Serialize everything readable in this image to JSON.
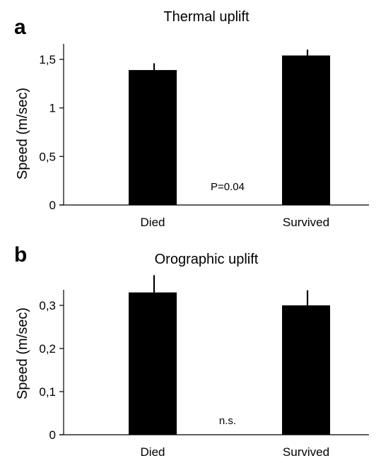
{
  "chart_data": [
    {
      "type": "bar",
      "panel": "a",
      "title": "Thermal uplift",
      "ylabel": "Speed (m/sec)",
      "xlabel": "",
      "categories": [
        "Died",
        "Survived"
      ],
      "values": [
        1.39,
        1.54
      ],
      "error_upper": [
        0.07,
        0.06
      ],
      "ylim": [
        0,
        1.5
      ],
      "yticks": [
        0,
        0.5,
        1,
        1.5
      ],
      "ytick_labels": [
        "0",
        "0,5",
        "1",
        "1,5"
      ],
      "annotation": "P=0.04",
      "bar_color": "#000000",
      "grid": false,
      "legend": "none"
    },
    {
      "type": "bar",
      "panel": "b",
      "title": "Orographic uplift",
      "ylabel": "Speed (m/sec)",
      "xlabel": "",
      "categories": [
        "Died",
        "Survived"
      ],
      "values": [
        0.33,
        0.3
      ],
      "error_upper": [
        0.04,
        0.035
      ],
      "ylim": [
        0,
        0.3
      ],
      "yticks": [
        0,
        0.1,
        0.2,
        0.3
      ],
      "ytick_labels": [
        "0",
        "0,1",
        "0,2",
        "0,3"
      ],
      "annotation": "n.s.",
      "bar_color": "#000000",
      "grid": false,
      "legend": "none"
    }
  ]
}
